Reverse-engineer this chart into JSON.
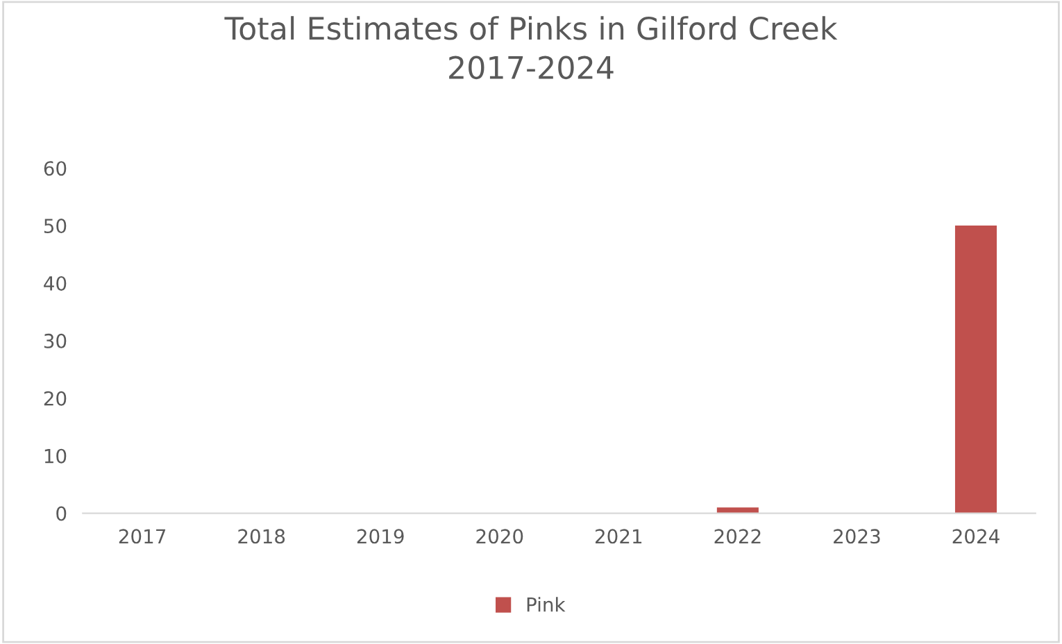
{
  "chart_data": {
    "type": "bar",
    "title": "Total Estimates of Pinks in Gilford Creek\n2017-2024",
    "categories": [
      "2017",
      "2018",
      "2019",
      "2020",
      "2021",
      "2022",
      "2023",
      "2024"
    ],
    "series": [
      {
        "name": "Pink",
        "color": "#c0504d",
        "values": [
          0,
          0,
          0,
          0,
          0,
          1,
          0,
          50
        ]
      }
    ],
    "ylim": [
      0,
      60
    ],
    "yticks": [
      0,
      10,
      20,
      30,
      40,
      50,
      60
    ],
    "grid": false,
    "legend": "bottom"
  }
}
